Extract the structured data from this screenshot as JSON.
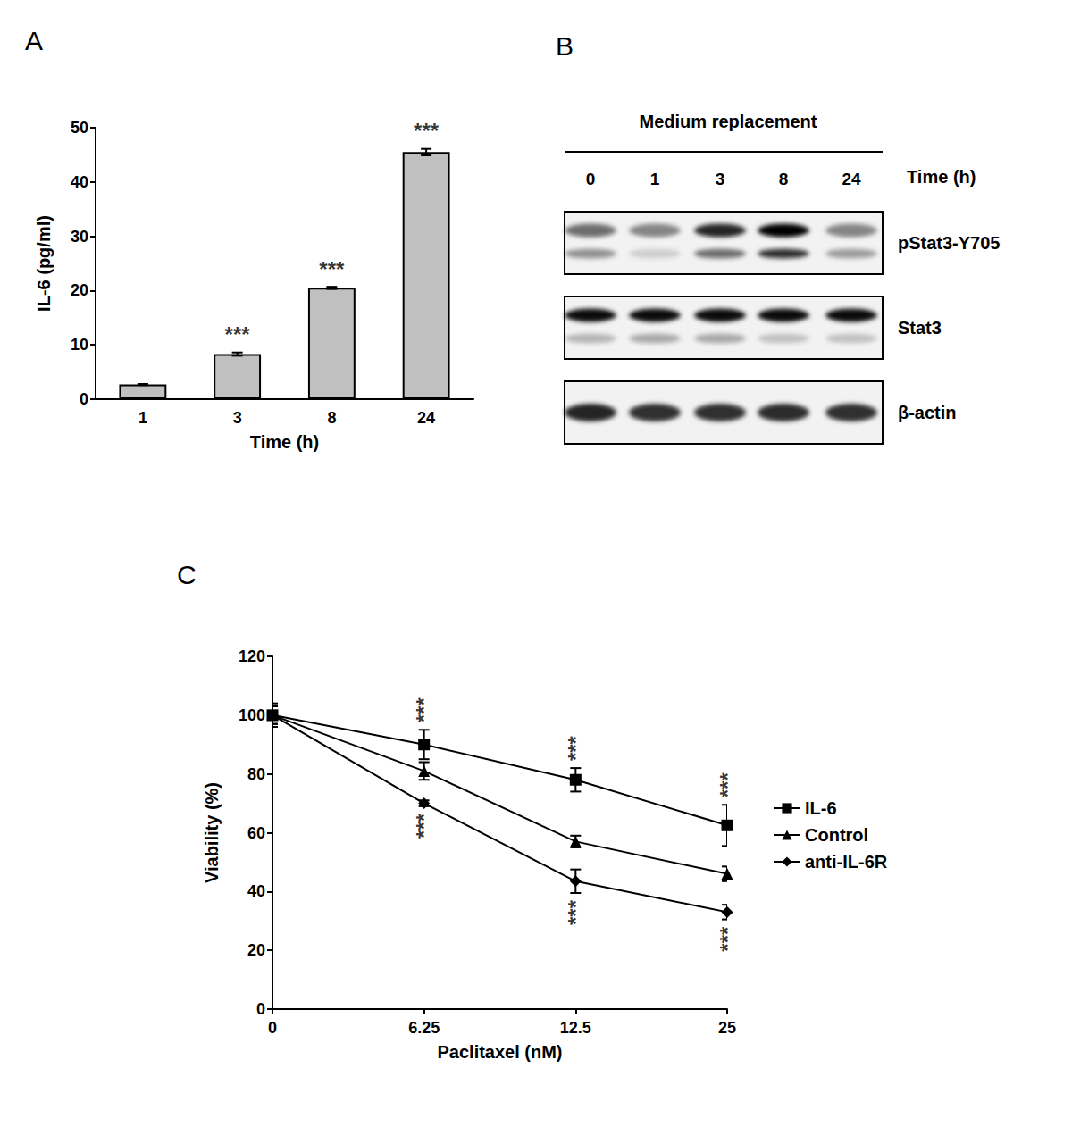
{
  "chart_data": [
    {
      "panel": "A",
      "type": "bar",
      "categories": [
        "1",
        "3",
        "8",
        "24"
      ],
      "values": [
        2.7,
        8.3,
        20.5,
        45.5
      ],
      "errors": [
        0.1,
        0.3,
        0.2,
        0.6
      ],
      "color": "#c0c0c0",
      "x_label": "Time (h)",
      "y_label": "IL-6 (pg/ml)",
      "ylim": [
        0,
        50
      ],
      "yticks": [
        0,
        10,
        20,
        30,
        40,
        50
      ],
      "grid": false,
      "annotations": [
        {
          "category": "3",
          "text": "***",
          "position": "above"
        },
        {
          "category": "8",
          "text": "***",
          "position": "above"
        },
        {
          "category": "24",
          "text": "***",
          "position": "above"
        }
      ]
    },
    {
      "panel": "C",
      "type": "line",
      "categories": [
        "0",
        "6.25",
        "12.5",
        "25"
      ],
      "x_label": "Paclitaxel (nM)",
      "y_label": "Viability (%)",
      "ylim": [
        0,
        120
      ],
      "yticks": [
        0,
        20,
        40,
        60,
        80,
        100,
        120
      ],
      "grid": false,
      "legend": "right",
      "series": [
        {
          "name": "IL-6",
          "color": "#000000",
          "marker": "square",
          "values": [
            100,
            90,
            78,
            62.5
          ],
          "errors": [
            4,
            5,
            4,
            7
          ]
        },
        {
          "name": "Control",
          "color": "#000000",
          "marker": "triangle",
          "values": [
            100,
            81,
            57,
            46
          ],
          "errors": [
            3,
            3,
            2,
            2.5
          ]
        },
        {
          "name": "anti-IL-6R",
          "color": "#000000",
          "marker": "diamond",
          "values": [
            100,
            70,
            43.5,
            33
          ],
          "errors": [
            3,
            1,
            4,
            2.5
          ]
        }
      ],
      "annotations": [
        {
          "series": "IL-6",
          "category": "6.25",
          "text": "***",
          "position": "above"
        },
        {
          "series": "IL-6",
          "category": "12.5",
          "text": "***",
          "position": "above"
        },
        {
          "series": "IL-6",
          "category": "25",
          "text": "***",
          "position": "above"
        },
        {
          "series": "anti-IL-6R",
          "category": "6.25",
          "text": "***",
          "position": "below"
        },
        {
          "series": "anti-IL-6R",
          "category": "12.5",
          "text": "***",
          "position": "below"
        },
        {
          "series": "anti-IL-6R",
          "category": "25",
          "text": "***",
          "position": "below"
        }
      ]
    }
  ],
  "western_blot": {
    "panel": "B",
    "header": "Medium replacement",
    "time_label": "Time (h)",
    "lanes": [
      "0",
      "1",
      "3",
      "8",
      "24"
    ],
    "rows": [
      {
        "label": "pStat3-Y705",
        "bands": [
          [
            0.55,
            0.45,
            0.85,
            1.0,
            0.45
          ],
          [
            0.4,
            0.15,
            0.55,
            0.8,
            0.35
          ]
        ]
      },
      {
        "label": "Stat3",
        "bands": [
          [
            0.95,
            0.95,
            0.95,
            0.95,
            0.95
          ],
          [
            0.25,
            0.3,
            0.3,
            0.2,
            0.2
          ]
        ]
      },
      {
        "label": "β-actin",
        "bands": [
          [
            0.85,
            0.8,
            0.8,
            0.82,
            0.8
          ]
        ]
      }
    ]
  }
}
